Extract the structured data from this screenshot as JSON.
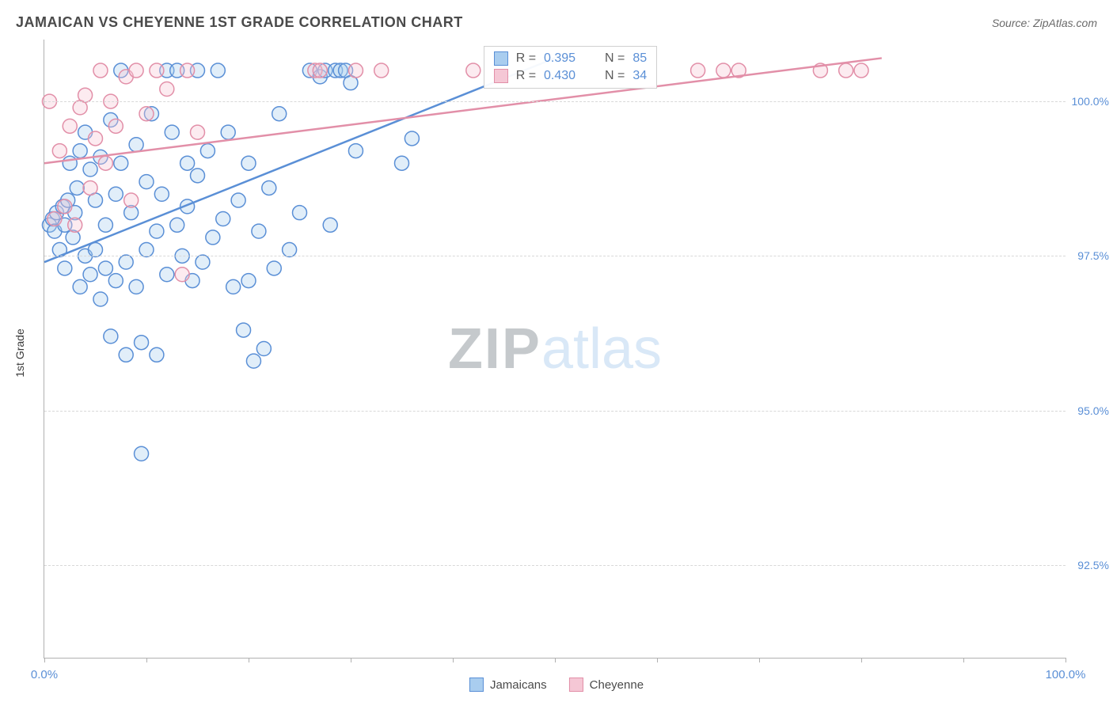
{
  "title": "JAMAICAN VS CHEYENNE 1ST GRADE CORRELATION CHART",
  "source": "Source: ZipAtlas.com",
  "y_axis_label": "1st Grade",
  "watermark_zip": "ZIP",
  "watermark_atlas": "atlas",
  "chart": {
    "type": "scatter",
    "xlim": [
      0,
      100
    ],
    "ylim": [
      91,
      101
    ],
    "xtick_positions": [
      0,
      10,
      20,
      30,
      40,
      50,
      60,
      70,
      80,
      90,
      100
    ],
    "xtick_labels": {
      "0": "0.0%",
      "100": "100.0%"
    },
    "ytick_positions": [
      92.5,
      95.0,
      97.5,
      100.0
    ],
    "ytick_labels": [
      "92.5%",
      "95.0%",
      "97.5%",
      "100.0%"
    ],
    "grid_color": "#d8d8d8",
    "axis_color": "#b0b0b0",
    "tick_label_color": "#5a8fd6",
    "background_color": "#ffffff",
    "marker_radius": 9,
    "marker_fill_opacity": 0.35,
    "marker_stroke_width": 1.5,
    "line_width": 2.5,
    "series": [
      {
        "name": "Jamaicans",
        "color": "#5a8fd6",
        "fill": "#a9cdef",
        "r_label": "R =",
        "r_value": "0.395",
        "n_label": "N =",
        "n_value": "85",
        "trend": {
          "x1": 0,
          "y1": 97.4,
          "x2": 50,
          "y2": 100.7
        },
        "points": [
          [
            0.5,
            98.0
          ],
          [
            0.8,
            98.1
          ],
          [
            1.0,
            97.9
          ],
          [
            1.2,
            98.2
          ],
          [
            1.5,
            97.6
          ],
          [
            1.8,
            98.3
          ],
          [
            2.0,
            98.0
          ],
          [
            2.0,
            97.3
          ],
          [
            2.3,
            98.4
          ],
          [
            2.5,
            99.0
          ],
          [
            2.8,
            97.8
          ],
          [
            3.0,
            98.2
          ],
          [
            3.2,
            98.6
          ],
          [
            3.5,
            99.2
          ],
          [
            3.5,
            97.0
          ],
          [
            4.0,
            97.5
          ],
          [
            4.0,
            99.5
          ],
          [
            4.5,
            98.9
          ],
          [
            4.5,
            97.2
          ],
          [
            5.0,
            98.4
          ],
          [
            5.0,
            97.6
          ],
          [
            5.5,
            99.1
          ],
          [
            5.5,
            96.8
          ],
          [
            6.0,
            98.0
          ],
          [
            6.0,
            97.3
          ],
          [
            6.5,
            99.7
          ],
          [
            6.5,
            96.2
          ],
          [
            7.0,
            98.5
          ],
          [
            7.0,
            97.1
          ],
          [
            7.5,
            99.0
          ],
          [
            7.5,
            100.5
          ],
          [
            8.0,
            97.4
          ],
          [
            8.0,
            95.9
          ],
          [
            8.5,
            98.2
          ],
          [
            9.0,
            97.0
          ],
          [
            9.0,
            99.3
          ],
          [
            9.5,
            96.1
          ],
          [
            9.5,
            94.3
          ],
          [
            10.0,
            98.7
          ],
          [
            10.0,
            97.6
          ],
          [
            10.5,
            99.8
          ],
          [
            11.0,
            97.9
          ],
          [
            11.0,
            95.9
          ],
          [
            11.5,
            98.5
          ],
          [
            12.0,
            100.5
          ],
          [
            12.0,
            97.2
          ],
          [
            12.5,
            99.5
          ],
          [
            13.0,
            98.0
          ],
          [
            13.0,
            100.5
          ],
          [
            13.5,
            97.5
          ],
          [
            14.0,
            99.0
          ],
          [
            14.0,
            98.3
          ],
          [
            14.5,
            97.1
          ],
          [
            15.0,
            98.8
          ],
          [
            15.0,
            100.5
          ],
          [
            15.5,
            97.4
          ],
          [
            16.0,
            99.2
          ],
          [
            16.5,
            97.8
          ],
          [
            17.0,
            100.5
          ],
          [
            17.5,
            98.1
          ],
          [
            18.0,
            99.5
          ],
          [
            18.5,
            97.0
          ],
          [
            19.0,
            98.4
          ],
          [
            19.5,
            96.3
          ],
          [
            20.0,
            97.1
          ],
          [
            20.0,
            99.0
          ],
          [
            20.5,
            95.8
          ],
          [
            21.0,
            97.9
          ],
          [
            21.5,
            96.0
          ],
          [
            22.0,
            98.6
          ],
          [
            22.5,
            97.3
          ],
          [
            23.0,
            99.8
          ],
          [
            24.0,
            97.6
          ],
          [
            25.0,
            98.2
          ],
          [
            26.0,
            100.5
          ],
          [
            27.0,
            100.4
          ],
          [
            27.5,
            100.5
          ],
          [
            28.0,
            98.0
          ],
          [
            28.5,
            100.5
          ],
          [
            29.0,
            100.5
          ],
          [
            29.5,
            100.5
          ],
          [
            30.0,
            100.3
          ],
          [
            30.5,
            99.2
          ],
          [
            35.0,
            99.0
          ],
          [
            36.0,
            99.4
          ]
        ]
      },
      {
        "name": "Cheyenne",
        "color": "#e28fa8",
        "fill": "#f5c7d5",
        "r_label": "R =",
        "r_value": "0.430",
        "n_label": "N =",
        "n_value": "34",
        "trend": {
          "x1": 0,
          "y1": 99.0,
          "x2": 82,
          "y2": 100.7
        },
        "points": [
          [
            0.5,
            100.0
          ],
          [
            1.0,
            98.1
          ],
          [
            1.5,
            99.2
          ],
          [
            2.0,
            98.3
          ],
          [
            2.5,
            99.6
          ],
          [
            3.0,
            98.0
          ],
          [
            3.5,
            99.9
          ],
          [
            4.0,
            100.1
          ],
          [
            4.5,
            98.6
          ],
          [
            5.0,
            99.4
          ],
          [
            5.5,
            100.5
          ],
          [
            6.0,
            99.0
          ],
          [
            6.5,
            100.0
          ],
          [
            7.0,
            99.6
          ],
          [
            8.0,
            100.4
          ],
          [
            8.5,
            98.4
          ],
          [
            9.0,
            100.5
          ],
          [
            10.0,
            99.8
          ],
          [
            11.0,
            100.5
          ],
          [
            12.0,
            100.2
          ],
          [
            13.5,
            97.2
          ],
          [
            14.0,
            100.5
          ],
          [
            15.0,
            99.5
          ],
          [
            26.5,
            100.5
          ],
          [
            27.0,
            100.5
          ],
          [
            30.5,
            100.5
          ],
          [
            33.0,
            100.5
          ],
          [
            42.0,
            100.5
          ],
          [
            64.0,
            100.5
          ],
          [
            66.5,
            100.5
          ],
          [
            68.0,
            100.5
          ],
          [
            76.0,
            100.5
          ],
          [
            78.5,
            100.5
          ],
          [
            80.0,
            100.5
          ]
        ]
      }
    ]
  },
  "stats_box": {
    "left_pct": 43,
    "top_pct": 1
  },
  "legend_bottom": {
    "items": [
      {
        "label": "Jamaicans",
        "swatch_fill": "#a9cdef",
        "swatch_border": "#5a8fd6"
      },
      {
        "label": "Cheyenne",
        "swatch_fill": "#f5c7d5",
        "swatch_border": "#e28fa8"
      }
    ]
  }
}
